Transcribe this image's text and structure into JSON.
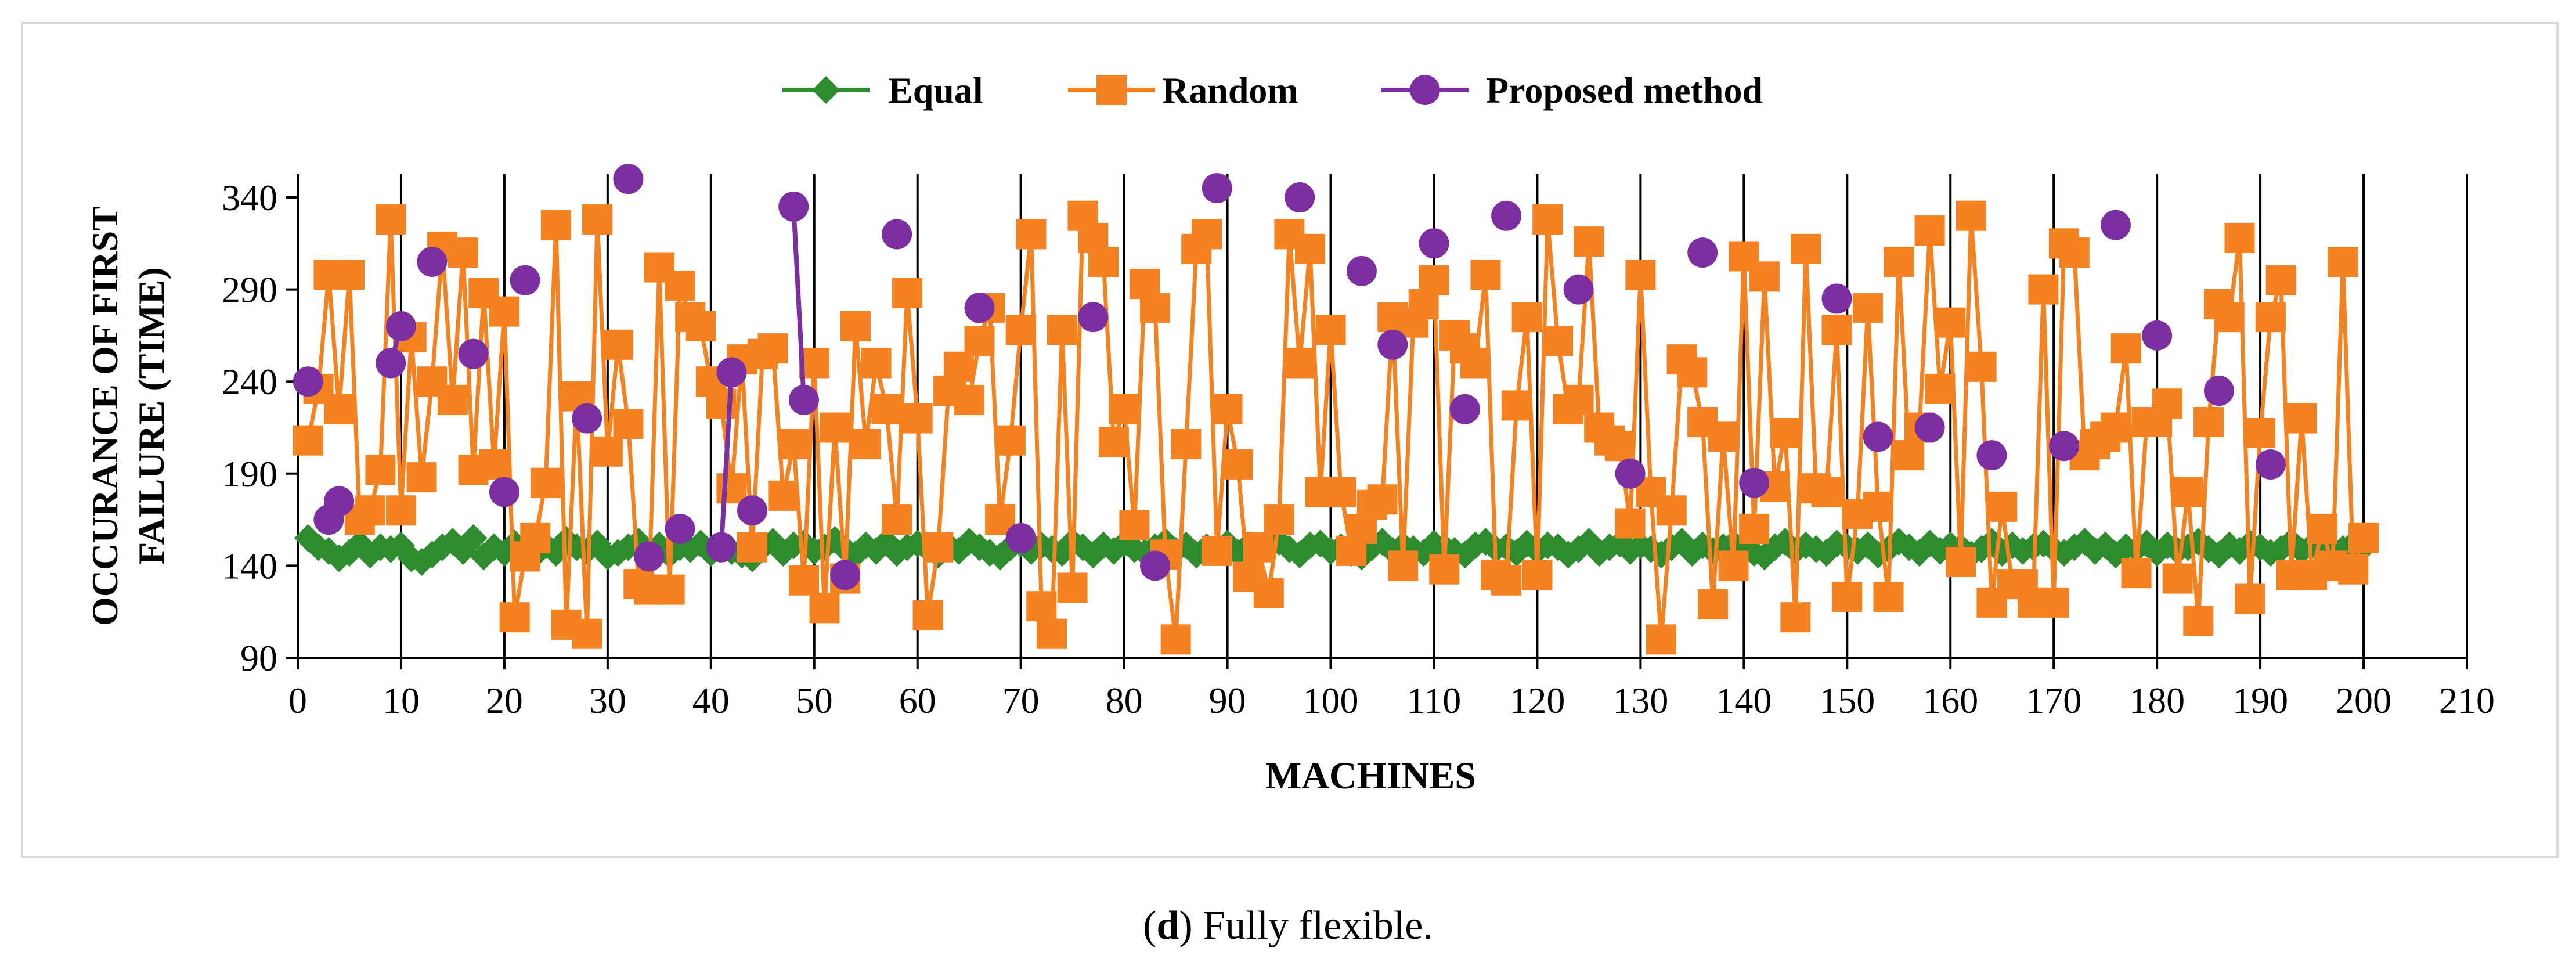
{
  "chart_data": {
    "type": "line",
    "title": "",
    "xlabel": "MACHINES",
    "ylabel_lines": [
      "OCCURANCE OF FIRST",
      "FAILURE (TIME)"
    ],
    "xlim": [
      0,
      210
    ],
    "ylim": [
      90,
      340
    ],
    "x_ticks": [
      0,
      10,
      20,
      30,
      40,
      50,
      60,
      70,
      80,
      90,
      100,
      110,
      120,
      130,
      140,
      150,
      160,
      170,
      180,
      190,
      200,
      210
    ],
    "y_ticks": [
      90,
      140,
      190,
      240,
      290,
      340
    ],
    "x_grid": true,
    "y_grid": false,
    "legend_position": "top-center",
    "series": [
      {
        "name": "Equal",
        "color": "#2e8b2e",
        "marker": "diamond",
        "x": [
          1,
          2,
          3,
          4,
          5,
          6,
          7,
          8,
          9,
          10,
          11,
          12,
          13,
          14,
          15,
          16,
          17,
          18,
          19,
          20,
          21,
          22,
          23,
          24,
          25,
          26,
          27,
          28,
          29,
          30,
          31,
          32,
          33,
          34,
          35,
          36,
          37,
          38,
          39,
          40,
          41,
          42,
          43,
          44,
          45,
          46,
          47,
          48,
          49,
          50,
          51,
          52,
          53,
          54,
          55,
          56,
          57,
          58,
          59,
          60,
          61,
          62,
          63,
          64,
          65,
          66,
          67,
          68,
          69,
          70,
          71,
          72,
          73,
          74,
          75,
          76,
          77,
          78,
          79,
          80,
          81,
          82,
          83,
          84,
          85,
          86,
          87,
          88,
          89,
          90,
          91,
          92,
          93,
          94,
          95,
          96,
          97,
          98,
          99,
          100,
          101,
          102,
          103,
          104,
          105,
          106,
          107,
          108,
          109,
          110,
          111,
          112,
          113,
          114,
          115,
          116,
          117,
          118,
          119,
          120,
          121,
          122,
          123,
          124,
          125,
          126,
          127,
          128,
          129,
          130,
          131,
          132,
          133,
          134,
          135,
          136,
          137,
          138,
          139,
          140,
          141,
          142,
          143,
          144,
          145,
          146,
          147,
          148,
          149,
          150,
          151,
          152,
          153,
          154,
          155,
          156,
          157,
          158,
          159,
          160,
          161,
          162,
          163,
          164,
          165,
          166,
          167,
          168,
          169,
          170,
          171,
          172,
          173,
          174,
          175,
          176,
          177,
          178,
          179,
          180,
          181,
          182,
          183,
          184,
          185,
          186,
          187,
          188,
          189,
          190,
          191,
          192,
          193,
          194,
          195,
          196,
          197,
          198,
          199,
          200
        ],
        "values": [
          155,
          150,
          148,
          144,
          147,
          152,
          146,
          150,
          149,
          151,
          144,
          142,
          146,
          150,
          153,
          148,
          155,
          145,
          150,
          147,
          152,
          149,
          146,
          151,
          147,
          154,
          150,
          148,
          152,
          145,
          147,
          150,
          153,
          148,
          151,
          146,
          150,
          149,
          152,
          147,
          151,
          148,
          146,
          144,
          150,
          153,
          147,
          151,
          152,
          148,
          150,
          154,
          149,
          146,
          151,
          148,
          153,
          147,
          150,
          152,
          149,
          146,
          151,
          148,
          153,
          150,
          147,
          145,
          150,
          152,
          148,
          151,
          149,
          147,
          153,
          150,
          146,
          151,
          148,
          152,
          149,
          147,
          150,
          153,
          148,
          151,
          146,
          150,
          149,
          152,
          147,
          151,
          148,
          150,
          153,
          149,
          146,
          151,
          152,
          148,
          150,
          147,
          145,
          150,
          153,
          148,
          151,
          149,
          147,
          152,
          150,
          148,
          146,
          151,
          153,
          149,
          150,
          147,
          152,
          148,
          151,
          150,
          146,
          149,
          153,
          147,
          150,
          152,
          148,
          151,
          149,
          146,
          150,
          153,
          147,
          151,
          148,
          150,
          152,
          149,
          147,
          145,
          150,
          153,
          148,
          151,
          149,
          147,
          152,
          150,
          148,
          151,
          146,
          149,
          153,
          150,
          147,
          152,
          148,
          151,
          150,
          146,
          149,
          153,
          147,
          151,
          148,
          150,
          152,
          149,
          147,
          150,
          153,
          148,
          151,
          146,
          150,
          149,
          152,
          147,
          151,
          148,
          150,
          153,
          149,
          146,
          151,
          148,
          152,
          150,
          147,
          149,
          153,
          148,
          151,
          150,
          146,
          149,
          152,
          150
        ]
      },
      {
        "name": "Random",
        "color": "#f58220",
        "marker": "square",
        "x": [
          1,
          2,
          3,
          4,
          5,
          6,
          7,
          8,
          9,
          10,
          11,
          12,
          13,
          14,
          15,
          16,
          17,
          18,
          19,
          20,
          21,
          22,
          23,
          24,
          25,
          26,
          27,
          28,
          29,
          30,
          31,
          32,
          33,
          34,
          35,
          36,
          37,
          38,
          39,
          40,
          41,
          42,
          43,
          44,
          45,
          46,
          47,
          48,
          49,
          50,
          51,
          52,
          53,
          54,
          55,
          56,
          57,
          58,
          59,
          60,
          61,
          62,
          63,
          64,
          65,
          66,
          67,
          68,
          69,
          70,
          71,
          72,
          73,
          74,
          75,
          76,
          77,
          78,
          79,
          80,
          81,
          82,
          83,
          84,
          85,
          86,
          87,
          88,
          89,
          90,
          91,
          92,
          93,
          94,
          95,
          96,
          97,
          98,
          99,
          100,
          101,
          102,
          103,
          104,
          105,
          106,
          107,
          108,
          109,
          110,
          111,
          112,
          113,
          114,
          115,
          116,
          117,
          118,
          119,
          120,
          121,
          122,
          123,
          124,
          125,
          126,
          127,
          128,
          129,
          130,
          131,
          132,
          133,
          134,
          135,
          136,
          137,
          138,
          139,
          140,
          141,
          142,
          143,
          144,
          145,
          146,
          147,
          148,
          149,
          150,
          151,
          152,
          153,
          154,
          155,
          156,
          157,
          158,
          159,
          160,
          161,
          162,
          163,
          164,
          165,
          166,
          167,
          168,
          169,
          170,
          171,
          172,
          173,
          174,
          175,
          176,
          177,
          178,
          179,
          180,
          181,
          182,
          183,
          184,
          185,
          186,
          187,
          188,
          189,
          190,
          191,
          192,
          193,
          194,
          195,
          196,
          197,
          198,
          199,
          200
        ],
        "values": [
          208,
          236,
          298,
          225,
          298,
          165,
          170,
          192,
          328,
          170,
          264,
          188,
          240,
          313,
          230,
          310,
          192,
          288,
          195,
          278,
          112,
          145,
          155,
          185,
          325,
          108,
          232,
          103,
          328,
          202,
          260,
          217,
          130,
          127,
          302,
          127,
          292,
          275,
          270,
          240,
          228,
          182,
          252,
          150,
          255,
          258,
          178,
          206,
          132,
          250,
          117,
          215,
          133,
          270,
          206,
          250,
          225,
          165,
          288,
          220,
          113,
          150,
          235,
          248,
          230,
          262,
          280,
          165,
          208,
          268,
          320,
          118,
          103,
          268,
          128,
          330,
          318,
          305,
          207,
          225,
          162,
          293,
          280,
          146,
          100,
          206,
          312,
          320,
          148,
          225,
          195,
          134,
          150,
          125,
          165,
          320,
          250,
          312,
          180,
          268,
          180,
          148,
          160,
          173,
          176,
          275,
          140,
          272,
          282,
          295,
          138,
          265,
          258,
          250,
          298,
          135,
          132,
          227,
          275,
          135,
          328,
          262,
          225,
          230,
          316,
          215,
          208,
          205,
          163,
          298,
          180,
          100,
          170,
          252,
          245,
          218,
          119,
          210,
          140,
          308,
          160,
          297,
          183,
          212,
          112,
          312,
          182,
          180,
          268,
          123,
          168,
          280,
          172,
          123,
          305,
          200,
          215,
          322,
          236,
          272,
          142,
          330,
          248,
          120,
          172,
          130,
          130,
          120,
          290,
          120,
          315,
          310,
          200,
          206,
          210,
          215,
          258,
          136,
          218,
          218,
          228,
          133,
          180,
          110,
          218,
          282,
          275,
          318,
          122,
          212,
          275,
          295,
          135,
          220,
          135,
          160,
          140,
          305,
          138,
          155
        ]
      },
      {
        "name": "Proposed method",
        "color": "#7b2fa0",
        "marker": "circle",
        "x": [
          1,
          3,
          4,
          9,
          10,
          13,
          17,
          20,
          22,
          28,
          32,
          34,
          37,
          41,
          42,
          44,
          48,
          49,
          53,
          58,
          66,
          70,
          77,
          83,
          89,
          97,
          103,
          106,
          110,
          113,
          117,
          124,
          129,
          136,
          141,
          149,
          153,
          158,
          164,
          171,
          176,
          180,
          186,
          191
        ],
        "values": [
          240,
          165,
          175,
          250,
          270,
          305,
          255,
          180,
          295,
          220,
          350,
          145,
          160,
          150,
          245,
          170,
          335,
          230,
          135,
          320,
          280,
          155,
          275,
          140,
          345,
          340,
          300,
          260,
          315,
          225,
          330,
          290,
          190,
          310,
          185,
          285,
          210,
          215,
          200,
          205,
          325,
          265,
          235,
          195
        ]
      }
    ]
  },
  "caption": {
    "label": "d",
    "text": " Fully flexible.",
    "open": "(",
    "close": ")"
  }
}
